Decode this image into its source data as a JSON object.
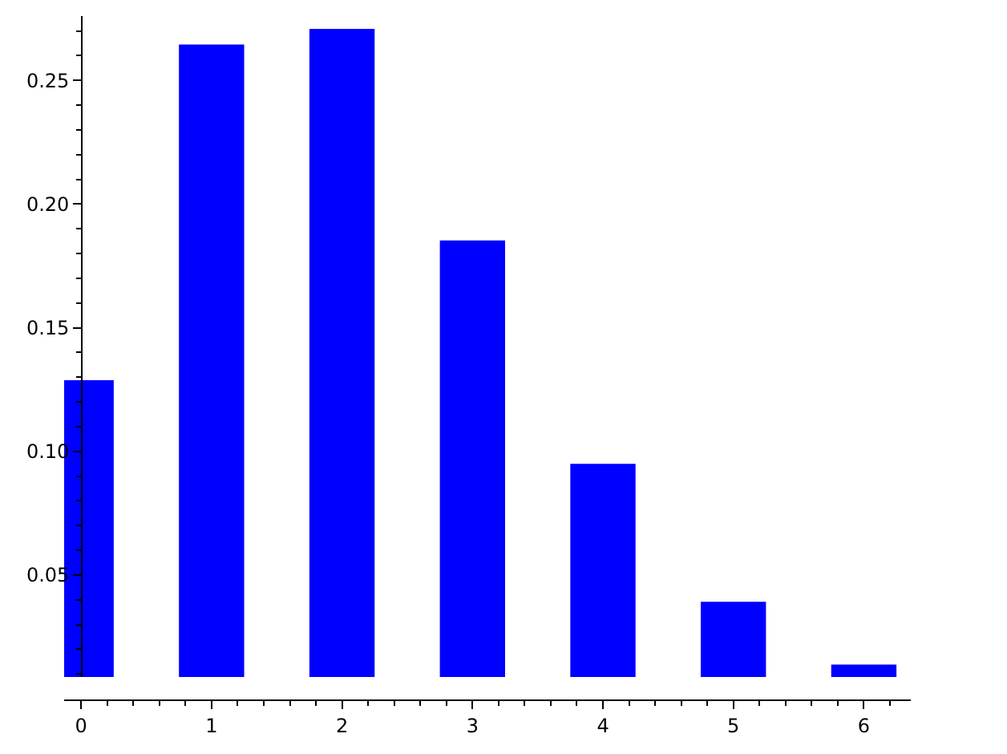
{
  "chart_data": {
    "type": "bar",
    "x": [
      0,
      1,
      2,
      3,
      4,
      5,
      6
    ],
    "values": [
      0.1288,
      0.2645,
      0.2708,
      0.1853,
      0.095,
      0.0392,
      0.0138
    ],
    "color": "#0000ff",
    "xlim": [
      -0.13,
      6.36
    ],
    "xticks": [
      0,
      1,
      2,
      3,
      4,
      5,
      6
    ],
    "ylim": [
      0.0088,
      0.276
    ],
    "yticks": [
      0.05,
      {
        "value": 0.1,
        "label": "0.10"
      },
      0.15,
      {
        "value": 0.2,
        "label": "0.20"
      },
      0.25
    ],
    "legend": false
  }
}
